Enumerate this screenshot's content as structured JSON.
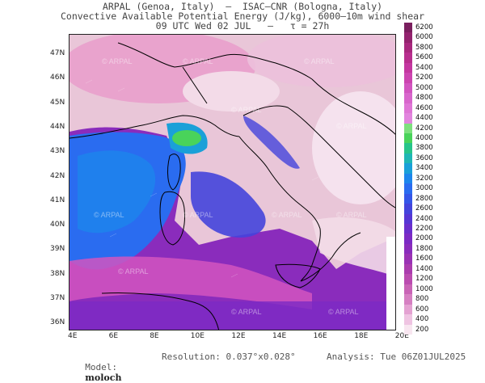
{
  "header": {
    "line1": "ARPAL (Genoa, Italy)  —  ISAC–CNR (Bologna, Italy)",
    "line2": "Convective Available Potential Energy (J/kg), 6000–10m wind shear",
    "line3": "09 UTC Wed 02 JUL   –   τ = 27h"
  },
  "map": {
    "lat_labels": [
      "47N",
      "46N",
      "45N",
      "44N",
      "43N",
      "42N",
      "41N",
      "40N",
      "39N",
      "38N",
      "37N",
      "36N"
    ],
    "lon_labels": [
      "4E",
      "6E",
      "8E",
      "10E",
      "12E",
      "14E",
      "16E",
      "18E",
      "20E"
    ],
    "watermark": "© ARPAL"
  },
  "colorbar": {
    "levels": [
      "6200",
      "6000",
      "5800",
      "5600",
      "5400",
      "5200",
      "5000",
      "4800",
      "4600",
      "4400",
      "4200",
      "4000",
      "3800",
      "3600",
      "3400",
      "3200",
      "3000",
      "2800",
      "2600",
      "2400",
      "2200",
      "2000",
      "1800",
      "1600",
      "1400",
      "1200",
      "1000",
      "800",
      "600",
      "400",
      "200"
    ],
    "colors": [
      "#7a1f5e",
      "#93236e",
      "#a8287e",
      "#b82e8e",
      "#c436a0",
      "#cc44b0",
      "#d255c0",
      "#d866cc",
      "#df76d6",
      "#e285de",
      "#7ee07e",
      "#49d35a",
      "#27c489",
      "#1fb6b4",
      "#1aa0d8",
      "#1d86ec",
      "#2a6cf0",
      "#3556e8",
      "#4444dc",
      "#5636d4",
      "#6a2ecc",
      "#7c2ac4",
      "#8a2cbc",
      "#9a32b4",
      "#ab3cae",
      "#bb4cb0",
      "#c964b6",
      "#d680c2",
      "#e4a2d2",
      "#efc4e2",
      "#f8e6f0"
    ]
  },
  "footer": {
    "model_label": "Model:",
    "model_value": "moloch",
    "resolution": "Resolution: 0.037°x0.028°",
    "analysis": "Analysis: Tue 06Z01JUL2025"
  }
}
